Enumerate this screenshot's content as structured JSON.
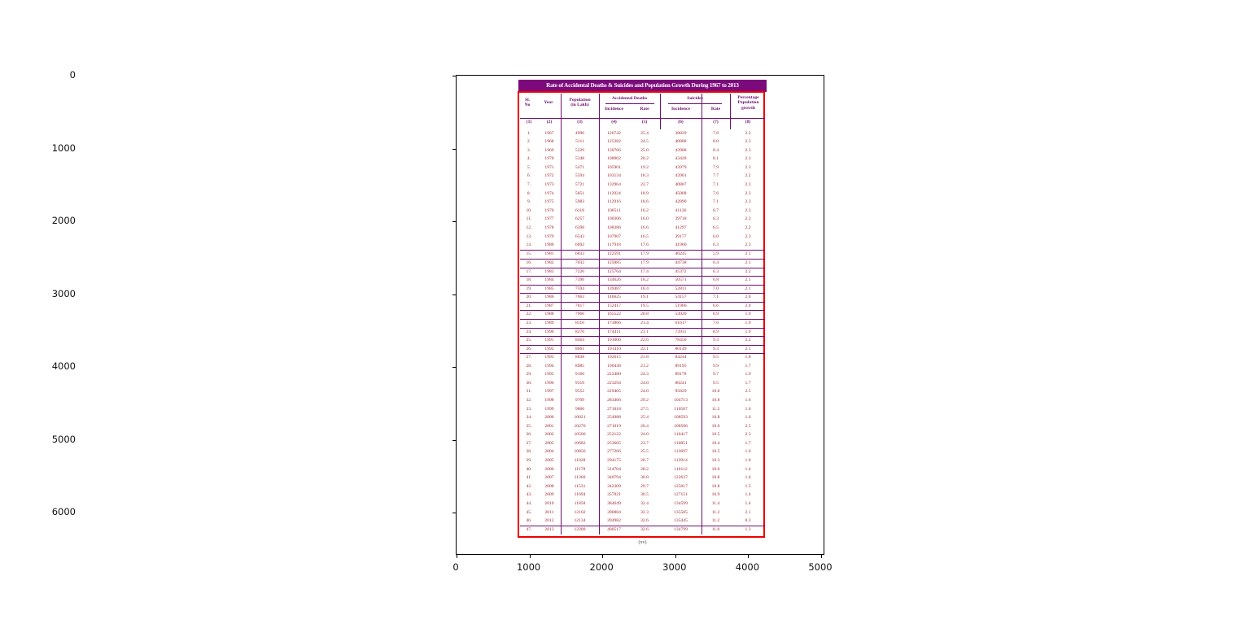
{
  "figure": {
    "x_ticks": [
      "0",
      "1000",
      "2000",
      "3000",
      "4000",
      "5000"
    ],
    "y_ticks": [
      "0",
      "1000",
      "2000",
      "3000",
      "4000",
      "5000",
      "6000"
    ]
  },
  "table": {
    "title": "Rate of Accidental Deaths & Suicides and Population Growth During 1967 to 2013",
    "caption": "(xv)",
    "headers": {
      "sl_no": "Sl.\nNo",
      "year": "Year",
      "population": "Population\n(in Lakh)",
      "accidental_group": "Accidental Deaths",
      "suicides_group": "Suicides",
      "incidence": "Incidence",
      "rate": "Rate",
      "growth": "Percentage\nPopulation\ngrowth"
    },
    "col_numbers": [
      "(1)",
      "(2)",
      "(3)",
      "(4)",
      "(5)",
      "(6)",
      "(7)",
      "(8)"
    ],
    "highlighted_row_range": "rows 15 to 26 and row 47 outlined",
    "colors": {
      "title_bar": "#7c0a7c",
      "grid_lines": "#6e0d6e",
      "data_text": "#9e2028",
      "annotation_box": "#ee0000"
    }
  },
  "chart_data": {
    "type": "table",
    "title": "Rate of Accidental Deaths & Suicides and Population Growth During 1967 to 2013",
    "columns": [
      "Sl. No",
      "Year",
      "Population (in Lakh)",
      "Accidental Deaths Incidence",
      "Accidental Deaths Rate",
      "Suicides Incidence",
      "Suicides Rate",
      "Percentage Population growth"
    ],
    "xlabel": "",
    "ylabel": "",
    "xlim": [
      0,
      5056
    ],
    "ylim": [
      6590,
      0
    ],
    "rows": [
      [
        "1.",
        "1967",
        "4996",
        "126742",
        "25.4",
        "38829",
        "7.8",
        "2.2"
      ],
      [
        "2.",
        "1968",
        "5111",
        "125382",
        "24.5",
        "40888",
        "8.0",
        "2.3"
      ],
      [
        "3.",
        "1969",
        "5229",
        "130766",
        "25.0",
        "43988",
        "8.4",
        "2.3"
      ],
      [
        "4.",
        "1970",
        "5348",
        "108062",
        "20.2",
        "43428",
        "8.1",
        "2.3"
      ],
      [
        "5.",
        "1971",
        "5471",
        "105901",
        "19.2",
        "43979",
        "7.9",
        "2.3"
      ],
      [
        "6.",
        "1972",
        "5594",
        "103134",
        "18.3",
        "43901",
        "7.7",
        "2.2"
      ],
      [
        "7.",
        "1973",
        "5721",
        "132964",
        "22.7",
        "40807",
        "7.1",
        "2.3"
      ],
      [
        "8.",
        "1974",
        "5851",
        "112924",
        "18.9",
        "45008",
        "7.6",
        "2.3"
      ],
      [
        "9.",
        "1975",
        "5983",
        "112916",
        "18.6",
        "42890",
        "7.1",
        "2.3"
      ],
      [
        "10.",
        "1976",
        "6118",
        "100511",
        "16.2",
        "41136",
        "6.7",
        "2.3"
      ],
      [
        "11.",
        "1977",
        "6257",
        "100306",
        "16.0",
        "39718",
        "6.3",
        "2.3"
      ],
      [
        "12.",
        "1978",
        "6398",
        "108386",
        "16.6",
        "41297",
        "6.5",
        "2.2"
      ],
      [
        "13.",
        "1979",
        "6543",
        "107907",
        "16.5",
        "39177",
        "6.0",
        "2.3"
      ],
      [
        "14.",
        "1980",
        "6692",
        "117918",
        "17.6",
        "41960",
        "6.3",
        "2.3"
      ],
      [
        "15.",
        "1981",
        "6833",
        "122591",
        "17.9",
        "40245",
        "5.9",
        "2.1"
      ],
      [
        "16.",
        "1982",
        "7032",
        "125885",
        "17.9",
        "44738",
        "6.4",
        "2.1"
      ],
      [
        "17.",
        "1983",
        "7226",
        "125764",
        "17.4",
        "45372",
        "6.3",
        "2.2"
      ],
      [
        "18.",
        "1984",
        "7396",
        "134626",
        "18.2",
        "50571",
        "6.8",
        "2.1"
      ],
      [
        "19.",
        "1985",
        "7594",
        "139487",
        "18.4",
        "52811",
        "7.0",
        "2.1"
      ],
      [
        "20.",
        "1986",
        "7663",
        "146625",
        "19.1",
        "54157",
        "7.1",
        "2.0"
      ],
      [
        "21.",
        "1987",
        "7817",
        "152417",
        "19.5",
        "51966",
        "6.6",
        "2.0"
      ],
      [
        "22.",
        "1988",
        "7966",
        "165522",
        "20.8",
        "54920",
        "6.9",
        "1.9"
      ],
      [
        "23.",
        "1989",
        "8116",
        "173866",
        "21.4",
        "61617",
        "7.6",
        "1.9"
      ],
      [
        "24.",
        "1990",
        "8270",
        "174411",
        "21.1",
        "73911",
        "8.9",
        "1.9"
      ],
      [
        "25.",
        "1991",
        "8464",
        "191006",
        "22.6",
        "78450",
        "9.3",
        "2.2"
      ],
      [
        "26.",
        "1992",
        "8661",
        "191410",
        "22.1",
        "80149",
        "9.3",
        "2.1"
      ],
      [
        "27.",
        "1993",
        "8838",
        "192615",
        "21.8",
        "84244",
        "9.5",
        "1.8"
      ],
      [
        "28.",
        "1994",
        "8985",
        "190438",
        "21.2",
        "89195",
        "9.9",
        "1.7"
      ],
      [
        "29.",
        "1995",
        "9160",
        "222480",
        "24.3",
        "89178",
        "9.7",
        "1.9"
      ],
      [
        "30.",
        "1996",
        "9319",
        "223294",
        "24.0",
        "88241",
        "9.5",
        "1.7"
      ],
      [
        "31.",
        "1997",
        "9552",
        "229405",
        "24.0",
        "95829",
        "10.0",
        "2.5"
      ],
      [
        "32.",
        "1998",
        "9709",
        "283406",
        "29.2",
        "104713",
        "10.8",
        "1.6"
      ],
      [
        "33.",
        "1999",
        "9866",
        "271018",
        "27.5",
        "110587",
        "11.2",
        "1.6"
      ],
      [
        "34.",
        "2000",
        "10021",
        "254988",
        "25.4",
        "108593",
        "10.8",
        "1.6"
      ],
      [
        "35.",
        "2001",
        "10270",
        "271019",
        "26.4",
        "108506",
        "10.6",
        "2.5"
      ],
      [
        "36.",
        "2002",
        "10506",
        "252122",
        "24.0",
        "110417",
        "10.5",
        "2.3"
      ],
      [
        "37.",
        "2003",
        "10682",
        "253605",
        "23.7",
        "110851",
        "10.4",
        "1.7"
      ],
      [
        "38.",
        "2004",
        "10856",
        "277266",
        "25.5",
        "113697",
        "10.5",
        "1.6"
      ],
      [
        "39.",
        "2005",
        "11028",
        "294175",
        "26.7",
        "113914",
        "10.3",
        "1.6"
      ],
      [
        "40.",
        "2006",
        "11178",
        "314704",
        "28.2",
        "118112",
        "10.6",
        "1.4"
      ],
      [
        "41.",
        "2007",
        "11360",
        "340794",
        "30.0",
        "122637",
        "10.8",
        "1.6"
      ],
      [
        "42.",
        "2008",
        "11531",
        "342309",
        "29.7",
        "125017",
        "10.8",
        "1.5"
      ],
      [
        "43.",
        "2009",
        "11694",
        "357021",
        "30.5",
        "127151",
        "10.9",
        "1.4"
      ],
      [
        "44.",
        "2010",
        "11858",
        "384649",
        "32.4",
        "134599",
        "11.4",
        "1.4"
      ],
      [
        "45.",
        "2011",
        "12102",
        "390884",
        "32.3",
        "135585",
        "11.2",
        "2.1"
      ],
      [
        "46.",
        "2012",
        "12134",
        "394982",
        "32.6",
        "135445",
        "11.2",
        "0.3"
      ],
      [
        "47.",
        "2013",
        "12288",
        "400517",
        "32.6",
        "134799",
        "11.0",
        "1.3"
      ]
    ]
  }
}
